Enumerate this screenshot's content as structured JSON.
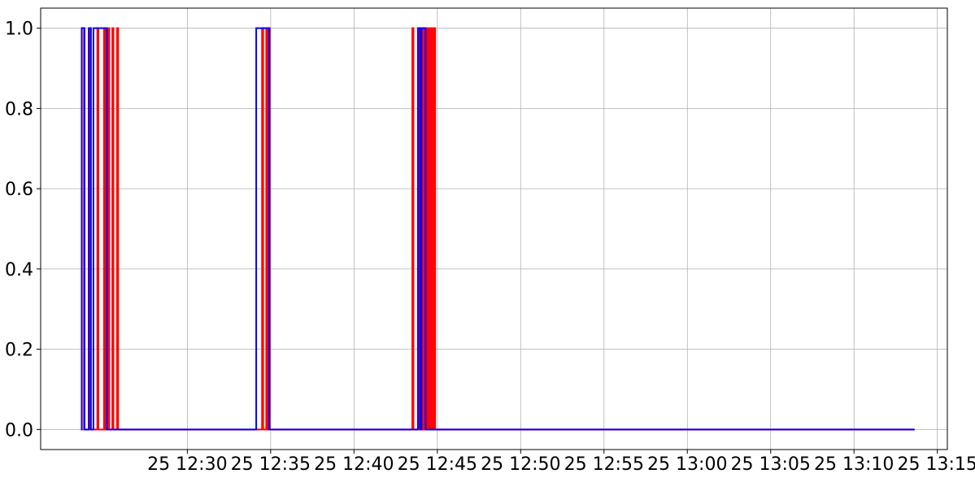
{
  "chart_data": {
    "type": "line",
    "grid": true,
    "xaxis_type": "time",
    "xlim": [
      "25 12:21:12",
      "25 13:15:36"
    ],
    "ylim": [
      -0.05,
      1.05
    ],
    "y_ticks": [
      0.0,
      0.2,
      0.4,
      0.6,
      0.8,
      1.0
    ],
    "y_tick_labels": [
      "0.0",
      "0.2",
      "0.4",
      "0.6",
      "0.8",
      "1.0"
    ],
    "x_ticks": [
      "25 12:30",
      "25 12:35",
      "25 12:40",
      "25 12:45",
      "25 12:50",
      "25 12:55",
      "25 13:00",
      "25 13:05",
      "25 13:10",
      "25 13:15"
    ],
    "x_tick_labels": [
      "25 12:30",
      "25 12:35",
      "25 12:40",
      "25 12:45",
      "25 12:50",
      "25 12:55",
      "25 13:00",
      "25 13:05",
      "25 13:10",
      "25 13:15"
    ],
    "series": [
      {
        "color": "#ff0000",
        "step": "post",
        "points": [
          [
            "25 12:23:37",
            0
          ],
          [
            "25 12:23:40",
            1
          ],
          [
            "25 12:23:48",
            0
          ],
          [
            "25 12:24:08",
            1
          ],
          [
            "25 12:24:12",
            0
          ],
          [
            "25 12:24:36",
            1
          ],
          [
            "25 12:24:40",
            0
          ],
          [
            "25 12:25:00",
            1
          ],
          [
            "25 12:25:04",
            0
          ],
          [
            "25 12:25:15",
            1
          ],
          [
            "25 12:25:19",
            0
          ],
          [
            "25 12:25:30",
            1
          ],
          [
            "25 12:25:34",
            0
          ],
          [
            "25 12:25:47",
            1
          ],
          [
            "25 12:25:51",
            0
          ],
          [
            "25 12:34:29",
            1
          ],
          [
            "25 12:34:33",
            0
          ],
          [
            "25 12:34:44",
            1
          ],
          [
            "25 12:34:48",
            0
          ],
          [
            "25 12:34:53",
            1
          ],
          [
            "25 12:34:57",
            0
          ],
          [
            "25 12:43:30",
            1
          ],
          [
            "25 12:43:34",
            0
          ],
          [
            "25 12:43:53",
            1
          ],
          [
            "25 12:43:57",
            0
          ],
          [
            "25 12:44:03",
            1
          ],
          [
            "25 12:44:07",
            0
          ],
          [
            "25 12:44:13",
            1
          ],
          [
            "25 12:44:17",
            0
          ],
          [
            "25 12:44:20",
            1
          ],
          [
            "25 12:44:24",
            0
          ],
          [
            "25 12:44:28",
            1
          ],
          [
            "25 12:44:32",
            0
          ],
          [
            "25 12:44:38",
            1
          ],
          [
            "25 12:44:42",
            0
          ],
          [
            "25 12:44:48",
            1
          ],
          [
            "25 12:44:52",
            0
          ],
          [
            "25 13:13:38",
            0
          ]
        ]
      },
      {
        "color": "#0000ff",
        "step": "post",
        "points": [
          [
            "25 12:23:37",
            0
          ],
          [
            "25 12:23:40",
            1
          ],
          [
            "25 12:23:50",
            0
          ],
          [
            "25 12:24:05",
            1
          ],
          [
            "25 12:24:13",
            0
          ],
          [
            "25 12:24:22",
            1
          ],
          [
            "25 12:25:10",
            0
          ],
          [
            "25 12:34:00",
            0
          ],
          [
            "25 12:34:08",
            1
          ],
          [
            "25 12:34:55",
            0
          ],
          [
            "25 12:43:50",
            1
          ],
          [
            "25 12:43:58",
            0
          ],
          [
            "25 12:44:03",
            1
          ],
          [
            "25 12:44:18",
            0
          ],
          [
            "25 13:13:38",
            0
          ]
        ]
      }
    ]
  }
}
